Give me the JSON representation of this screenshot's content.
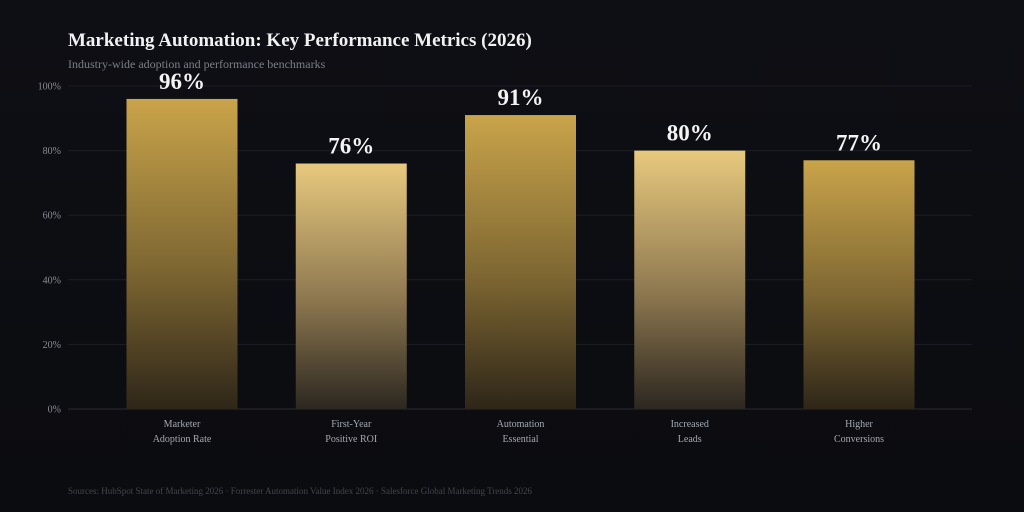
{
  "chart_data": {
    "type": "bar",
    "title": "Marketing Automation: Key Performance Metrics (2026)",
    "subtitle": "Industry-wide adoption and performance benchmarks",
    "categories": [
      [
        "Marketer",
        "Adoption Rate"
      ],
      [
        "First-Year",
        "Positive ROI"
      ],
      [
        "Automation",
        "Essential"
      ],
      [
        "Increased",
        "Leads"
      ],
      [
        "Higher",
        "Conversions"
      ]
    ],
    "values": [
      96,
      76,
      91,
      80,
      77
    ],
    "data_labels": [
      "96%",
      "76%",
      "91%",
      "80%",
      "77%"
    ],
    "y_ticks": [
      "0%",
      "20%",
      "40%",
      "60%",
      "80%",
      "100%"
    ],
    "ylim": [
      0,
      100
    ],
    "grid": true,
    "colors": {
      "bar_top_gold": "#c9a44a",
      "bar_top_light": "#e8c97e",
      "bar_bottom": "#2e2618"
    },
    "bar_styles": [
      "deep",
      "light",
      "deep",
      "light",
      "deep"
    ],
    "source": "Sources: HubSpot State of Marketing 2026 · Forrester Automation Value Index 2026 · Salesforce Global Marketing Trends 2026"
  }
}
